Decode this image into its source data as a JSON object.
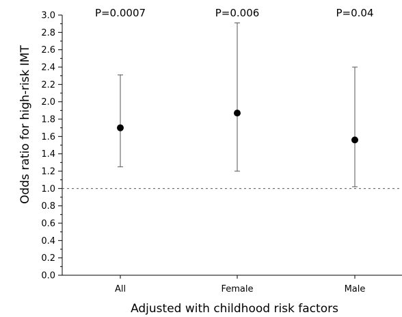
{
  "chart_data": {
    "type": "scatter",
    "subtype": "point-with-error-bars",
    "xlabel": "Adjusted with childhood risk factors",
    "ylabel": "Odds ratio for high-risk IMT",
    "ylim": [
      0.0,
      3.0
    ],
    "y_ticks": [
      "0.0",
      "0.2",
      "0.4",
      "0.6",
      "0.8",
      "1.0",
      "1.2",
      "1.4",
      "1.6",
      "1.8",
      "2.0",
      "2.2",
      "2.4",
      "2.6",
      "2.8",
      "3.0"
    ],
    "y_minor_tick_step": 0.1,
    "categories": [
      "All",
      "Female",
      "Male"
    ],
    "values": [
      1.7,
      1.87,
      1.56
    ],
    "ci_lower": [
      1.25,
      1.2,
      1.02
    ],
    "ci_upper": [
      2.31,
      2.91,
      2.4
    ],
    "p_values": [
      "P=0.0007",
      "P=0.006",
      "P=0.04"
    ],
    "reference_line": 1.0,
    "grid": false,
    "legend": "none",
    "colors": {
      "marker": "#000000",
      "error_bar": "#555555",
      "axis": "#000000",
      "reference_line": "#555555"
    }
  }
}
